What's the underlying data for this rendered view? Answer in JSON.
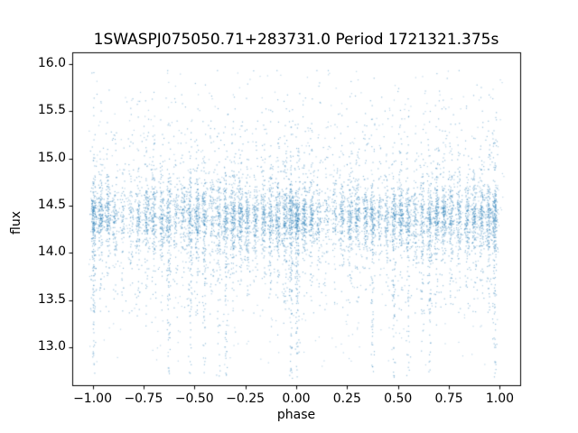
{
  "chart_data": {
    "type": "scatter",
    "title": "1SWASPJ075050.71+283731.0 Period 1721321.375s",
    "xlabel": "phase",
    "ylabel": "flux",
    "xlim": [
      -1.1,
      1.1
    ],
    "ylim": [
      12.6,
      16.124
    ],
    "xticks": [
      -1.0,
      -0.75,
      -0.5,
      -0.25,
      0.0,
      0.25,
      0.5,
      0.75,
      1.0
    ],
    "xtick_labels": [
      "−1.00",
      "−0.75",
      "−0.50",
      "−0.25",
      "0.00",
      "0.25",
      "0.50",
      "0.75",
      "1.00"
    ],
    "yticks": [
      13.0,
      13.5,
      14.0,
      14.5,
      15.0,
      15.5,
      16.0
    ],
    "ytick_labels": [
      "13.0",
      "13.5",
      "14.0",
      "14.5",
      "15.0",
      "15.5",
      "16.0"
    ],
    "marker_color": "#1f77b4",
    "marker_alpha": 0.45,
    "marker_size": 1.2,
    "grid": false,
    "legend": "none",
    "seed": 42,
    "flux_core_mean": 14.38,
    "flux_core_sigma": 0.16,
    "flux_min": 12.67,
    "flux_max": 15.93,
    "band_sigma_x": 0.007,
    "background_n": 900,
    "note": "Phase-folded SWASP light curve; points repeat over phase range [-1,1] in dense vertical bands",
    "bands": [
      {
        "phase": 0.005,
        "n": 230,
        "deep": true
      },
      {
        "phase": 0.04,
        "n": 170,
        "deep": false
      },
      {
        "phase": 0.075,
        "n": 150,
        "deep": false
      },
      {
        "phase": 0.11,
        "n": 100,
        "deep": false
      },
      {
        "phase": 0.15,
        "n": 65,
        "deep": false
      },
      {
        "phase": 0.19,
        "n": 75,
        "deep": false
      },
      {
        "phase": 0.225,
        "n": 120,
        "deep": false
      },
      {
        "phase": 0.265,
        "n": 150,
        "deep": false
      },
      {
        "phase": 0.3,
        "n": 145,
        "deep": false
      },
      {
        "phase": 0.34,
        "n": 135,
        "deep": false
      },
      {
        "phase": 0.375,
        "n": 160,
        "deep": true
      },
      {
        "phase": 0.41,
        "n": 85,
        "deep": false
      },
      {
        "phase": 0.445,
        "n": 105,
        "deep": false
      },
      {
        "phase": 0.48,
        "n": 150,
        "deep": true
      },
      {
        "phase": 0.515,
        "n": 175,
        "deep": false
      },
      {
        "phase": 0.55,
        "n": 145,
        "deep": true
      },
      {
        "phase": 0.585,
        "n": 95,
        "deep": false
      },
      {
        "phase": 0.62,
        "n": 115,
        "deep": true
      },
      {
        "phase": 0.655,
        "n": 160,
        "deep": true
      },
      {
        "phase": 0.69,
        "n": 185,
        "deep": false
      },
      {
        "phase": 0.725,
        "n": 175,
        "deep": false
      },
      {
        "phase": 0.76,
        "n": 155,
        "deep": false
      },
      {
        "phase": 0.8,
        "n": 135,
        "deep": false
      },
      {
        "phase": 0.84,
        "n": 145,
        "deep": false
      },
      {
        "phase": 0.875,
        "n": 155,
        "deep": false
      },
      {
        "phase": 0.91,
        "n": 160,
        "deep": false
      },
      {
        "phase": 0.945,
        "n": 175,
        "deep": false
      },
      {
        "phase": 0.975,
        "n": 210,
        "deep": true
      }
    ]
  }
}
